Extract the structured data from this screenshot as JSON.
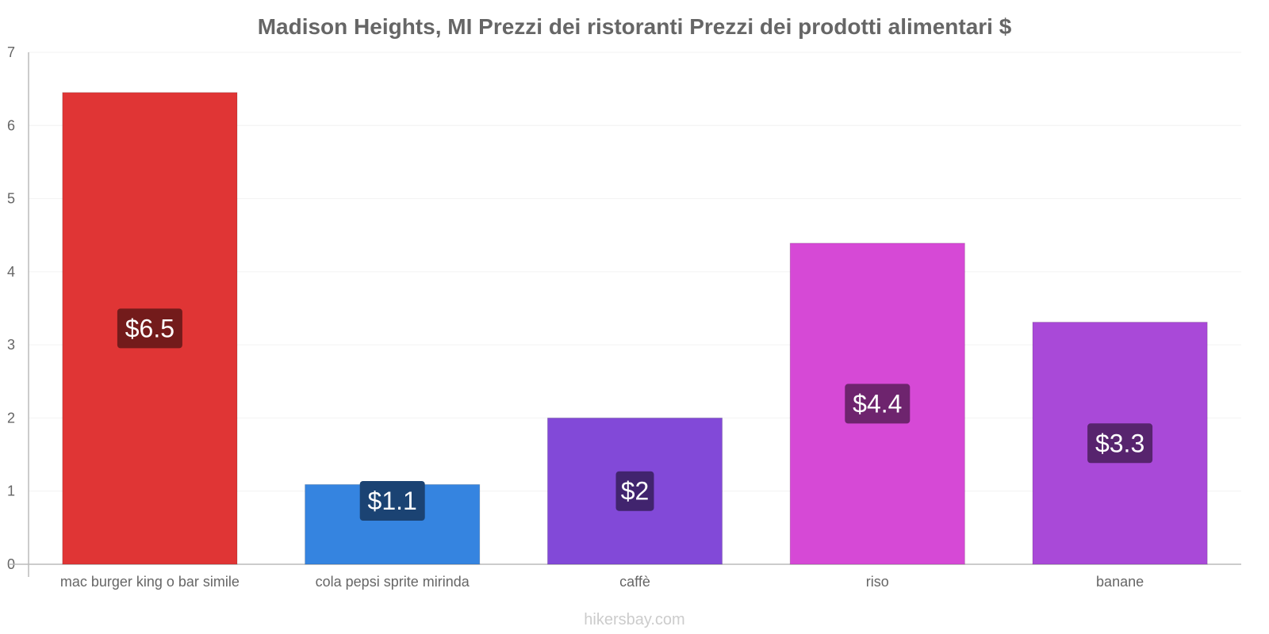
{
  "chart_data": {
    "type": "bar",
    "title": "Madison Heights, MI Prezzi dei ristoranti Prezzi dei prodotti alimentari $",
    "categories": [
      "mac burger king o bar simile",
      "cola pepsi sprite mirinda",
      "caffè",
      "riso",
      "banane"
    ],
    "values": [
      6.45,
      1.09,
      2.0,
      4.39,
      3.31
    ],
    "value_labels": [
      "$6.5",
      "$1.1",
      "$2",
      "$4.4",
      "$3.3"
    ],
    "colors": [
      "#e03535",
      "#3584e0",
      "#8249d8",
      "#d649d6",
      "#a949d8"
    ],
    "label_bg_colors": [
      "#731b1b",
      "#1b4373",
      "#41246e",
      "#6e246e",
      "#57246e"
    ],
    "xlabel": "",
    "ylabel": "",
    "ylim": [
      0,
      7
    ],
    "yticks": [
      "0",
      "1",
      "2",
      "3",
      "4",
      "5",
      "6",
      "7"
    ],
    "grid": true
  },
  "footer": {
    "source": "hikersbay.com"
  }
}
